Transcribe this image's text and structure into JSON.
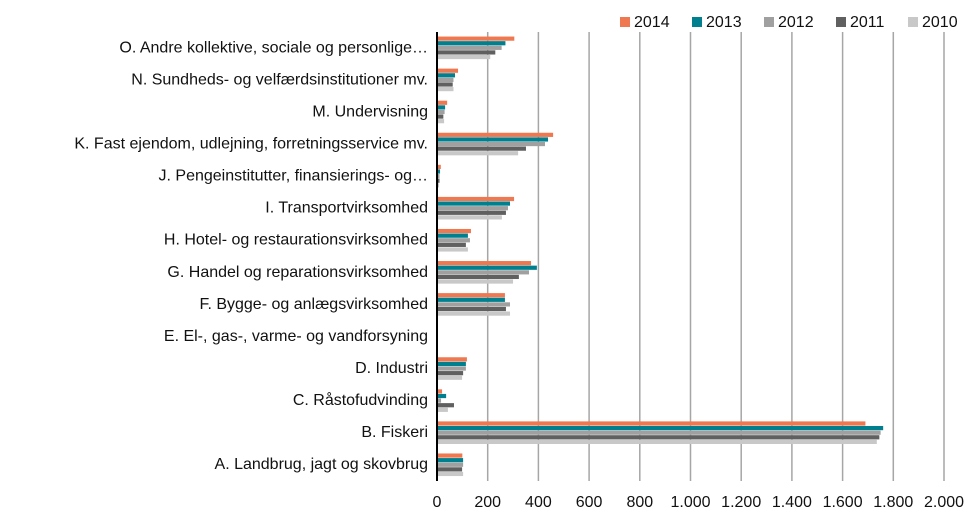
{
  "chart_data": {
    "type": "hbar",
    "categories": [
      "O. Andre kollektive, sociale og personlige…",
      "N. Sundheds- og velfærdsinstitutioner mv.",
      "M. Undervisning",
      "K. Fast ejendom, udlejning, forretningsservice mv.",
      "J. Pengeinstitutter, finansierings- og…",
      "I. Transportvirksomhed",
      "H. Hotel- og restaurationsvirksomhed",
      "G. Handel og reparationsvirksomhed",
      "F. Bygge- og anlægsvirksomhed",
      "E. El-, gas-, varme- og vandforsyning",
      "D. Industri",
      "C. Råstofudvinding",
      "B. Fiskeri",
      "A. Landbrug, jagt og skovbrug"
    ],
    "series": [
      {
        "name": "2014",
        "color": "#f07850",
        "values": [
          305,
          83,
          40,
          458,
          15,
          304,
          134,
          371,
          268,
          0,
          118,
          20,
          1690,
          100
        ]
      },
      {
        "name": "2013",
        "color": "#00808f",
        "values": [
          270,
          71,
          32,
          438,
          12,
          288,
          122,
          394,
          268,
          0,
          114,
          36,
          1760,
          103
        ]
      },
      {
        "name": "2012",
        "color": "#a0a0a0",
        "values": [
          255,
          65,
          30,
          426,
          10,
          280,
          130,
          363,
          288,
          0,
          114,
          16,
          1750,
          103
        ]
      },
      {
        "name": "2011",
        "color": "#606060",
        "values": [
          230,
          62,
          25,
          351,
          10,
          272,
          114,
          323,
          272,
          0,
          103,
          67,
          1745,
          99
        ]
      },
      {
        "name": "2010",
        "color": "#c8c8c8",
        "values": [
          210,
          65,
          28,
          320,
          8,
          256,
          122,
          300,
          288,
          0,
          99,
          43,
          1735,
          103
        ]
      }
    ],
    "xlim": [
      0,
      2000
    ],
    "xticks": [
      0,
      200,
      400,
      600,
      800,
      {
        "value": 1000,
        "label": "1.000"
      },
      {
        "value": 1200,
        "label": "1.200"
      },
      {
        "value": 1400,
        "label": "1.400"
      },
      {
        "value": 1600,
        "label": "1.600"
      },
      {
        "value": 1800,
        "label": "1.800"
      },
      {
        "value": 2000,
        "label": "2.000"
      }
    ],
    "grid": true,
    "legend": "top-right"
  }
}
